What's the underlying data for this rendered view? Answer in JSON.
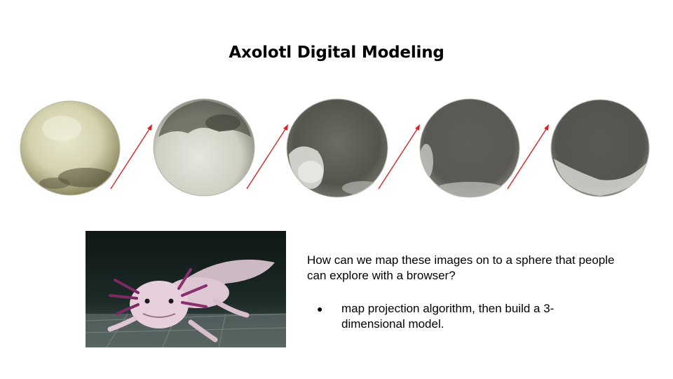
{
  "slide": {
    "title": "Axolotl Digital Modeling",
    "question": "How can we map these images on to a sphere that people can explore with a browser?",
    "bullets": [
      {
        "text": "map projection algorithm, then build a 3-dimensional model."
      }
    ]
  },
  "embryo_sequence": {
    "count": 5,
    "arrow_color": "#e02020",
    "stages": [
      {
        "image": "embryo-stage-1"
      },
      {
        "image": "embryo-stage-2"
      },
      {
        "image": "embryo-stage-3"
      },
      {
        "image": "embryo-stage-4"
      },
      {
        "image": "embryo-stage-5"
      }
    ]
  },
  "photo": {
    "image": "axolotl-photo"
  }
}
